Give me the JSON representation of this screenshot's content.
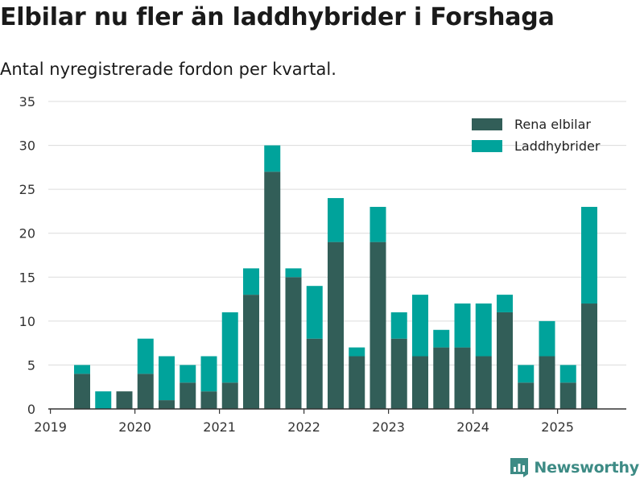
{
  "title": "Elbilar nu fler än laddhybrider i Forshaga",
  "subtitle": "Antal nyregistrerade fordon per kvartal.",
  "brand": "Newsworthy",
  "colors": {
    "elbilar": "#325e58",
    "laddhybrider": "#00a39b",
    "grid": "#dcdcdc",
    "axis": "#333333",
    "brand": "#3d8b85"
  },
  "chart_data": {
    "type": "bar",
    "stacked": true,
    "categories": [
      "2019 Q2",
      "2019 Q3",
      "2019 Q4",
      "2020 Q1",
      "2020 Q2",
      "2020 Q3",
      "2020 Q4",
      "2021 Q1",
      "2021 Q2",
      "2021 Q3",
      "2021 Q4",
      "2022 Q1",
      "2022 Q2",
      "2022 Q3",
      "2022 Q4",
      "2023 Q1",
      "2023 Q2",
      "2023 Q3",
      "2023 Q4",
      "2024 Q1",
      "2024 Q2",
      "2024 Q3",
      "2024 Q4",
      "2025 Q1",
      "2025 Q2"
    ],
    "series": [
      {
        "name": "Rena elbilar",
        "values": [
          4,
          0,
          2,
          4,
          1,
          3,
          2,
          3,
          13,
          27,
          15,
          8,
          19,
          6,
          19,
          8,
          6,
          7,
          7,
          6,
          11,
          3,
          6,
          3,
          12
        ]
      },
      {
        "name": "Laddhybrider",
        "values": [
          1,
          2,
          0,
          4,
          5,
          2,
          4,
          8,
          3,
          3,
          1,
          6,
          5,
          1,
          4,
          3,
          7,
          2,
          5,
          6,
          2,
          2,
          4,
          2,
          11
        ]
      }
    ],
    "x_tick_labels": [
      "2019",
      "2020",
      "2021",
      "2022",
      "2023",
      "2024",
      "2025"
    ],
    "y_ticks": [
      0,
      5,
      10,
      15,
      20,
      25,
      30,
      35
    ],
    "ylim": [
      0,
      35
    ],
    "xlabel": "",
    "ylabel": "",
    "grid": true,
    "legend_position": "top-right"
  }
}
